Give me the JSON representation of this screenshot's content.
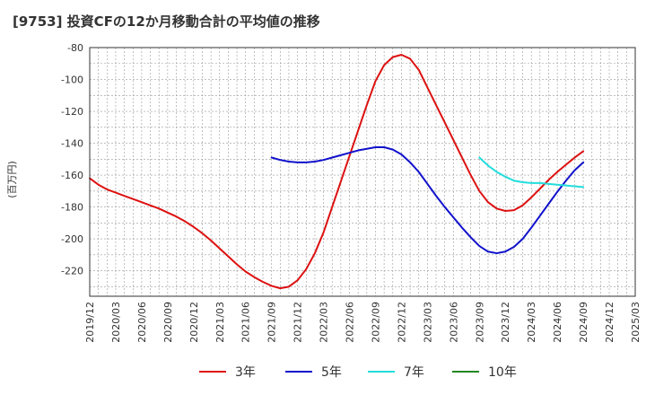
{
  "chart_data": {
    "type": "line",
    "title": "[9753]  投資CFの12か月移動合計の平均値の推移",
    "ylabel": "(百万円)",
    "xlabel": "",
    "ylim": [
      -236,
      -80
    ],
    "yticks": [
      -80,
      -100,
      -120,
      -140,
      -160,
      -180,
      -200,
      -220
    ],
    "xlim": [
      "2019-12",
      "2025-03"
    ],
    "xtick_labels": [
      "2019/12",
      "2020/03",
      "2020/06",
      "2020/09",
      "2020/12",
      "2021/03",
      "2021/06",
      "2021/09",
      "2021/12",
      "2022/03",
      "2022/06",
      "2022/09",
      "2022/12",
      "2023/03",
      "2023/06",
      "2023/09",
      "2023/12",
      "2024/03",
      "2024/06",
      "2024/09",
      "2024/12",
      "2025/03"
    ],
    "grid": true,
    "legend_position": "bottom",
    "series": [
      {
        "name": "3年",
        "color": "#dd1111",
        "points": [
          [
            "2019-12",
            -162
          ],
          [
            "2020-01",
            -166
          ],
          [
            "2020-02",
            -169
          ],
          [
            "2020-03",
            -171
          ],
          [
            "2020-04",
            -173
          ],
          [
            "2020-05",
            -175
          ],
          [
            "2020-06",
            -177
          ],
          [
            "2020-07",
            -179
          ],
          [
            "2020-08",
            -181
          ],
          [
            "2020-09",
            -183.5
          ],
          [
            "2020-10",
            -186
          ],
          [
            "2020-11",
            -189
          ],
          [
            "2020-12",
            -192.5
          ],
          [
            "2021-01",
            -196.5
          ],
          [
            "2021-02",
            -201
          ],
          [
            "2021-03",
            -206
          ],
          [
            "2021-04",
            -211
          ],
          [
            "2021-05",
            -216
          ],
          [
            "2021-06",
            -220.5
          ],
          [
            "2021-07",
            -224
          ],
          [
            "2021-08",
            -227
          ],
          [
            "2021-09",
            -229.5
          ],
          [
            "2021-10",
            -231
          ],
          [
            "2021-11",
            -230
          ],
          [
            "2021-12",
            -226
          ],
          [
            "2022-01",
            -219
          ],
          [
            "2022-02",
            -209
          ],
          [
            "2022-03",
            -196
          ],
          [
            "2022-04",
            -180
          ],
          [
            "2022-05",
            -164
          ],
          [
            "2022-06",
            -148
          ],
          [
            "2022-07",
            -132
          ],
          [
            "2022-08",
            -116
          ],
          [
            "2022-09",
            -101
          ],
          [
            "2022-10",
            -91
          ],
          [
            "2022-11",
            -86
          ],
          [
            "2022-12",
            -84.5
          ],
          [
            "2023-01",
            -87
          ],
          [
            "2023-02",
            -94
          ],
          [
            "2023-03",
            -105
          ],
          [
            "2023-04",
            -116
          ],
          [
            "2023-05",
            -127
          ],
          [
            "2023-06",
            -138
          ],
          [
            "2023-07",
            -149
          ],
          [
            "2023-08",
            -160
          ],
          [
            "2023-09",
            -170
          ],
          [
            "2023-10",
            -177
          ],
          [
            "2023-11",
            -181
          ],
          [
            "2023-12",
            -182.5
          ],
          [
            "2024-01",
            -182
          ],
          [
            "2024-02",
            -179
          ],
          [
            "2024-03",
            -174
          ],
          [
            "2024-04",
            -168.5
          ],
          [
            "2024-05",
            -163
          ],
          [
            "2024-06",
            -158
          ],
          [
            "2024-07",
            -153.5
          ],
          [
            "2024-08",
            -149
          ],
          [
            "2024-09",
            -145
          ]
        ]
      },
      {
        "name": "5年",
        "color": "#1111cc",
        "points": [
          [
            "2021-09",
            -149
          ],
          [
            "2021-10",
            -150.5
          ],
          [
            "2021-11",
            -151.5
          ],
          [
            "2021-12",
            -152
          ],
          [
            "2022-01",
            -152
          ],
          [
            "2022-02",
            -151.5
          ],
          [
            "2022-03",
            -150.5
          ],
          [
            "2022-04",
            -149
          ],
          [
            "2022-05",
            -147.5
          ],
          [
            "2022-06",
            -146
          ],
          [
            "2022-07",
            -144.5
          ],
          [
            "2022-08",
            -143.5
          ],
          [
            "2022-09",
            -142.5
          ],
          [
            "2022-10",
            -142.5
          ],
          [
            "2022-11",
            -144
          ],
          [
            "2022-12",
            -147
          ],
          [
            "2023-01",
            -152
          ],
          [
            "2023-02",
            -158
          ],
          [
            "2023-03",
            -165.5
          ],
          [
            "2023-04",
            -173
          ],
          [
            "2023-05",
            -180
          ],
          [
            "2023-06",
            -186.5
          ],
          [
            "2023-07",
            -193
          ],
          [
            "2023-08",
            -199
          ],
          [
            "2023-09",
            -204.5
          ],
          [
            "2023-10",
            -208
          ],
          [
            "2023-11",
            -209
          ],
          [
            "2023-12",
            -208
          ],
          [
            "2024-01",
            -205
          ],
          [
            "2024-02",
            -200
          ],
          [
            "2024-03",
            -193
          ],
          [
            "2024-04",
            -185.5
          ],
          [
            "2024-05",
            -178
          ],
          [
            "2024-06",
            -170.5
          ],
          [
            "2024-07",
            -163.5
          ],
          [
            "2024-08",
            -157
          ],
          [
            "2024-09",
            -152
          ]
        ]
      },
      {
        "name": "7年",
        "color": "#22dddd",
        "points": [
          [
            "2023-09",
            -149
          ],
          [
            "2023-10",
            -154
          ],
          [
            "2023-11",
            -158
          ],
          [
            "2023-12",
            -161
          ],
          [
            "2024-01",
            -163.5
          ],
          [
            "2024-02",
            -164.5
          ],
          [
            "2024-03",
            -165
          ],
          [
            "2024-04",
            -165
          ],
          [
            "2024-05",
            -165.5
          ],
          [
            "2024-06",
            -166
          ],
          [
            "2024-07",
            -166.5
          ],
          [
            "2024-08",
            -167
          ],
          [
            "2024-09",
            -167.5
          ]
        ]
      },
      {
        "name": "10年",
        "color": "#228822",
        "points": []
      }
    ]
  }
}
